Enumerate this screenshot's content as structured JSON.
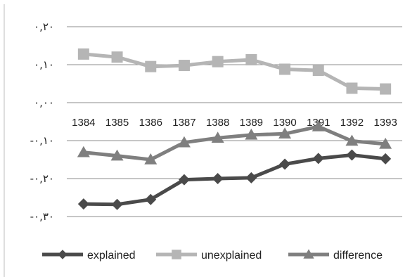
{
  "chart_data": {
    "type": "line",
    "categories": [
      "1384",
      "1385",
      "1386",
      "1387",
      "1388",
      "1389",
      "1390",
      "1391",
      "1392",
      "1393"
    ],
    "y_tick_labels": [
      "۰,۲۰",
      "۰,۱۰",
      "۰,۰۰",
      "-۰,۱۰",
      "-۰,۲۰",
      "-۰,۳۰"
    ],
    "y_tick_values": [
      0.2,
      0.1,
      0.0,
      -0.1,
      -0.2,
      -0.3
    ],
    "ylim": [
      -0.3,
      0.2
    ],
    "grid": true,
    "legend_position": "bottom",
    "series": [
      {
        "name": "explained",
        "marker": "diamond",
        "color": "#4a4a4a",
        "values": [
          -0.267,
          -0.268,
          -0.255,
          -0.203,
          -0.2,
          -0.198,
          -0.162,
          -0.147,
          -0.138,
          -0.148
        ]
      },
      {
        "name": "unexplained",
        "marker": "square",
        "color": "#b5b5b5",
        "values": [
          0.128,
          0.12,
          0.095,
          0.098,
          0.108,
          0.113,
          0.088,
          0.085,
          0.038,
          0.036
        ]
      },
      {
        "name": "difference",
        "marker": "triangle",
        "color": "#7f7f7f",
        "values": [
          -0.131,
          -0.14,
          -0.15,
          -0.105,
          -0.093,
          -0.085,
          -0.082,
          -0.063,
          -0.101,
          -0.109
        ]
      }
    ]
  }
}
